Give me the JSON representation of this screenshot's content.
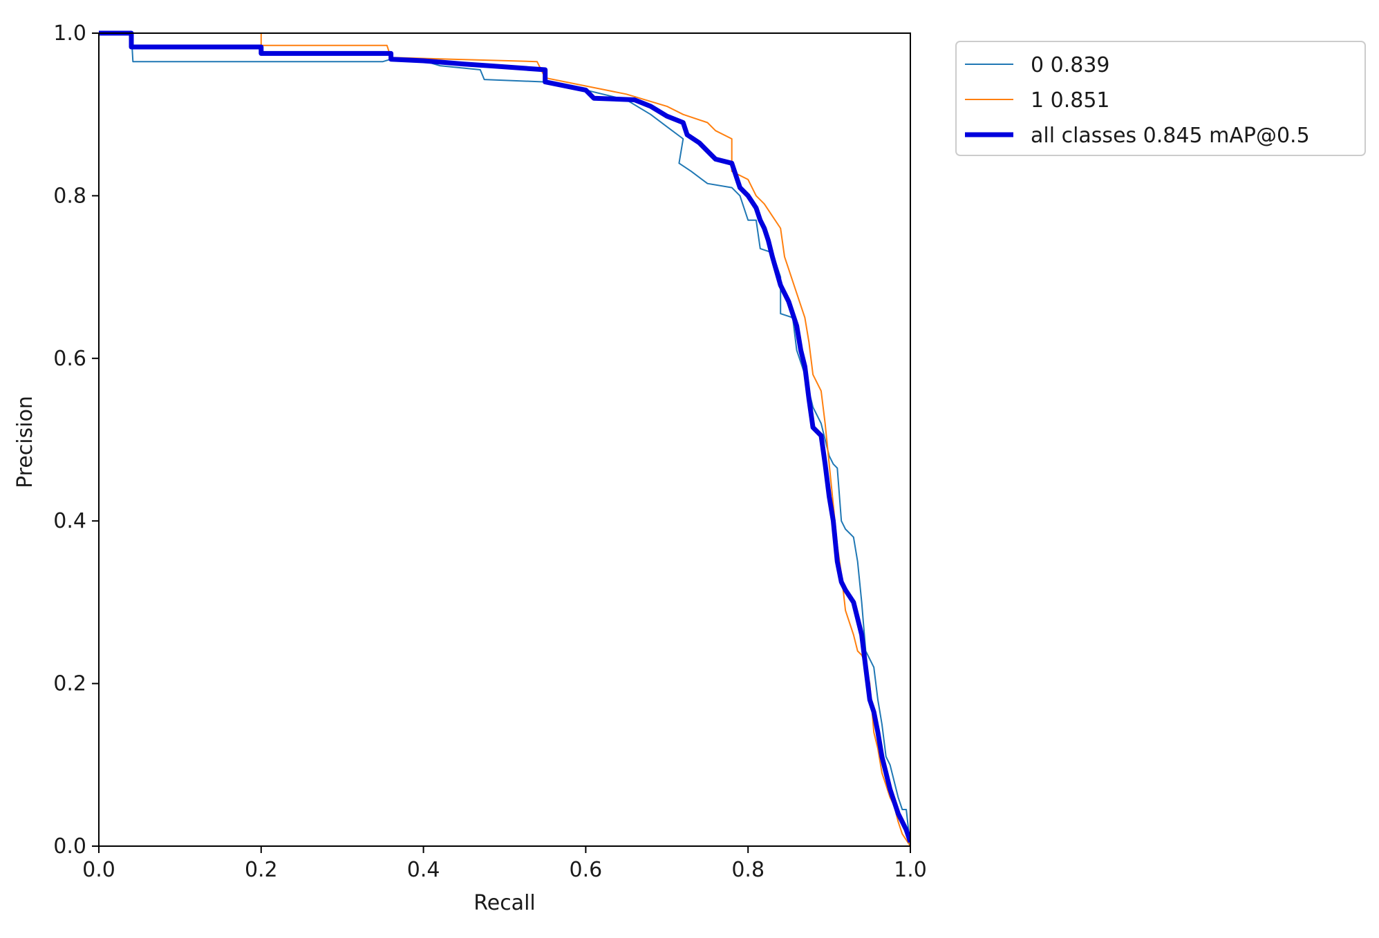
{
  "chart_data": {
    "type": "line",
    "title": "",
    "xlabel": "Recall",
    "ylabel": "Precision",
    "xlim": [
      0.0,
      1.0
    ],
    "ylim": [
      0.0,
      1.0
    ],
    "xticks": [
      "0.0",
      "0.2",
      "0.4",
      "0.6",
      "0.8",
      "1.0"
    ],
    "yticks": [
      "0.0",
      "0.2",
      "0.4",
      "0.6",
      "0.8",
      "1.0"
    ],
    "grid": false,
    "legend_position": "outside-top-right",
    "series": [
      {
        "name": "0 0.839",
        "color": "#1f77b4",
        "width": "thin",
        "points": [
          [
            0.0,
            1.0
          ],
          [
            0.04,
            1.0
          ],
          [
            0.042,
            0.965
          ],
          [
            0.35,
            0.965
          ],
          [
            0.36,
            0.968
          ],
          [
            0.4,
            0.966
          ],
          [
            0.42,
            0.96
          ],
          [
            0.47,
            0.955
          ],
          [
            0.475,
            0.943
          ],
          [
            0.55,
            0.94
          ],
          [
            0.6,
            0.93
          ],
          [
            0.65,
            0.918
          ],
          [
            0.68,
            0.9
          ],
          [
            0.7,
            0.885
          ],
          [
            0.72,
            0.87
          ],
          [
            0.715,
            0.84
          ],
          [
            0.73,
            0.83
          ],
          [
            0.75,
            0.815
          ],
          [
            0.78,
            0.81
          ],
          [
            0.79,
            0.8
          ],
          [
            0.8,
            0.77
          ],
          [
            0.81,
            0.77
          ],
          [
            0.815,
            0.735
          ],
          [
            0.83,
            0.73
          ],
          [
            0.84,
            0.7
          ],
          [
            0.84,
            0.655
          ],
          [
            0.855,
            0.65
          ],
          [
            0.86,
            0.61
          ],
          [
            0.87,
            0.58
          ],
          [
            0.875,
            0.56
          ],
          [
            0.88,
            0.54
          ],
          [
            0.89,
            0.52
          ],
          [
            0.895,
            0.5
          ],
          [
            0.9,
            0.48
          ],
          [
            0.905,
            0.47
          ],
          [
            0.91,
            0.465
          ],
          [
            0.915,
            0.4
          ],
          [
            0.92,
            0.39
          ],
          [
            0.93,
            0.38
          ],
          [
            0.935,
            0.35
          ],
          [
            0.94,
            0.3
          ],
          [
            0.945,
            0.24
          ],
          [
            0.955,
            0.22
          ],
          [
            0.96,
            0.18
          ],
          [
            0.965,
            0.15
          ],
          [
            0.97,
            0.11
          ],
          [
            0.975,
            0.1
          ],
          [
            0.98,
            0.08
          ],
          [
            0.985,
            0.06
          ],
          [
            0.99,
            0.045
          ],
          [
            0.995,
            0.045
          ],
          [
            1.0,
            0.0
          ]
        ]
      },
      {
        "name": "1 0.851",
        "color": "#ff7f0e",
        "width": "thin",
        "points": [
          [
            0.0,
            1.0
          ],
          [
            0.2,
            1.0
          ],
          [
            0.2,
            0.985
          ],
          [
            0.355,
            0.985
          ],
          [
            0.36,
            0.97
          ],
          [
            0.54,
            0.965
          ],
          [
            0.55,
            0.945
          ],
          [
            0.6,
            0.935
          ],
          [
            0.65,
            0.925
          ],
          [
            0.7,
            0.91
          ],
          [
            0.72,
            0.9
          ],
          [
            0.75,
            0.89
          ],
          [
            0.76,
            0.88
          ],
          [
            0.78,
            0.87
          ],
          [
            0.78,
            0.83
          ],
          [
            0.8,
            0.82
          ],
          [
            0.81,
            0.8
          ],
          [
            0.82,
            0.79
          ],
          [
            0.83,
            0.775
          ],
          [
            0.84,
            0.76
          ],
          [
            0.845,
            0.725
          ],
          [
            0.85,
            0.71
          ],
          [
            0.86,
            0.68
          ],
          [
            0.87,
            0.65
          ],
          [
            0.875,
            0.62
          ],
          [
            0.88,
            0.58
          ],
          [
            0.89,
            0.56
          ],
          [
            0.895,
            0.52
          ],
          [
            0.9,
            0.47
          ],
          [
            0.905,
            0.42
          ],
          [
            0.91,
            0.37
          ],
          [
            0.915,
            0.335
          ],
          [
            0.92,
            0.29
          ],
          [
            0.93,
            0.26
          ],
          [
            0.935,
            0.24
          ],
          [
            0.94,
            0.235
          ],
          [
            0.945,
            0.225
          ],
          [
            0.95,
            0.2
          ],
          [
            0.955,
            0.14
          ],
          [
            0.96,
            0.12
          ],
          [
            0.965,
            0.09
          ],
          [
            0.97,
            0.075
          ],
          [
            0.975,
            0.06
          ],
          [
            0.98,
            0.05
          ],
          [
            0.985,
            0.03
          ],
          [
            0.99,
            0.015
          ],
          [
            1.0,
            0.0
          ]
        ]
      },
      {
        "name": "all classes 0.845 mAP@0.5",
        "color": "#0000dd",
        "width": "thick",
        "points": [
          [
            0.0,
            1.0
          ],
          [
            0.04,
            1.0
          ],
          [
            0.04,
            0.983
          ],
          [
            0.2,
            0.983
          ],
          [
            0.2,
            0.975
          ],
          [
            0.36,
            0.975
          ],
          [
            0.36,
            0.968
          ],
          [
            0.4,
            0.966
          ],
          [
            0.45,
            0.962
          ],
          [
            0.48,
            0.96
          ],
          [
            0.55,
            0.955
          ],
          [
            0.55,
            0.94
          ],
          [
            0.6,
            0.93
          ],
          [
            0.61,
            0.92
          ],
          [
            0.66,
            0.918
          ],
          [
            0.68,
            0.91
          ],
          [
            0.7,
            0.898
          ],
          [
            0.72,
            0.89
          ],
          [
            0.725,
            0.875
          ],
          [
            0.74,
            0.865
          ],
          [
            0.75,
            0.855
          ],
          [
            0.76,
            0.845
          ],
          [
            0.78,
            0.84
          ],
          [
            0.79,
            0.81
          ],
          [
            0.8,
            0.8
          ],
          [
            0.81,
            0.785
          ],
          [
            0.815,
            0.77
          ],
          [
            0.82,
            0.76
          ],
          [
            0.825,
            0.745
          ],
          [
            0.83,
            0.725
          ],
          [
            0.84,
            0.69
          ],
          [
            0.85,
            0.67
          ],
          [
            0.86,
            0.64
          ],
          [
            0.865,
            0.61
          ],
          [
            0.87,
            0.59
          ],
          [
            0.875,
            0.55
          ],
          [
            0.88,
            0.515
          ],
          [
            0.89,
            0.505
          ],
          [
            0.895,
            0.47
          ],
          [
            0.9,
            0.43
          ],
          [
            0.905,
            0.4
          ],
          [
            0.91,
            0.35
          ],
          [
            0.915,
            0.325
          ],
          [
            0.92,
            0.315
          ],
          [
            0.93,
            0.3
          ],
          [
            0.935,
            0.28
          ],
          [
            0.94,
            0.26
          ],
          [
            0.945,
            0.22
          ],
          [
            0.95,
            0.18
          ],
          [
            0.955,
            0.165
          ],
          [
            0.96,
            0.14
          ],
          [
            0.965,
            0.11
          ],
          [
            0.97,
            0.09
          ],
          [
            0.975,
            0.07
          ],
          [
            0.98,
            0.055
          ],
          [
            0.985,
            0.04
          ],
          [
            0.99,
            0.03
          ],
          [
            0.995,
            0.02
          ],
          [
            1.0,
            0.005
          ]
        ]
      }
    ]
  }
}
